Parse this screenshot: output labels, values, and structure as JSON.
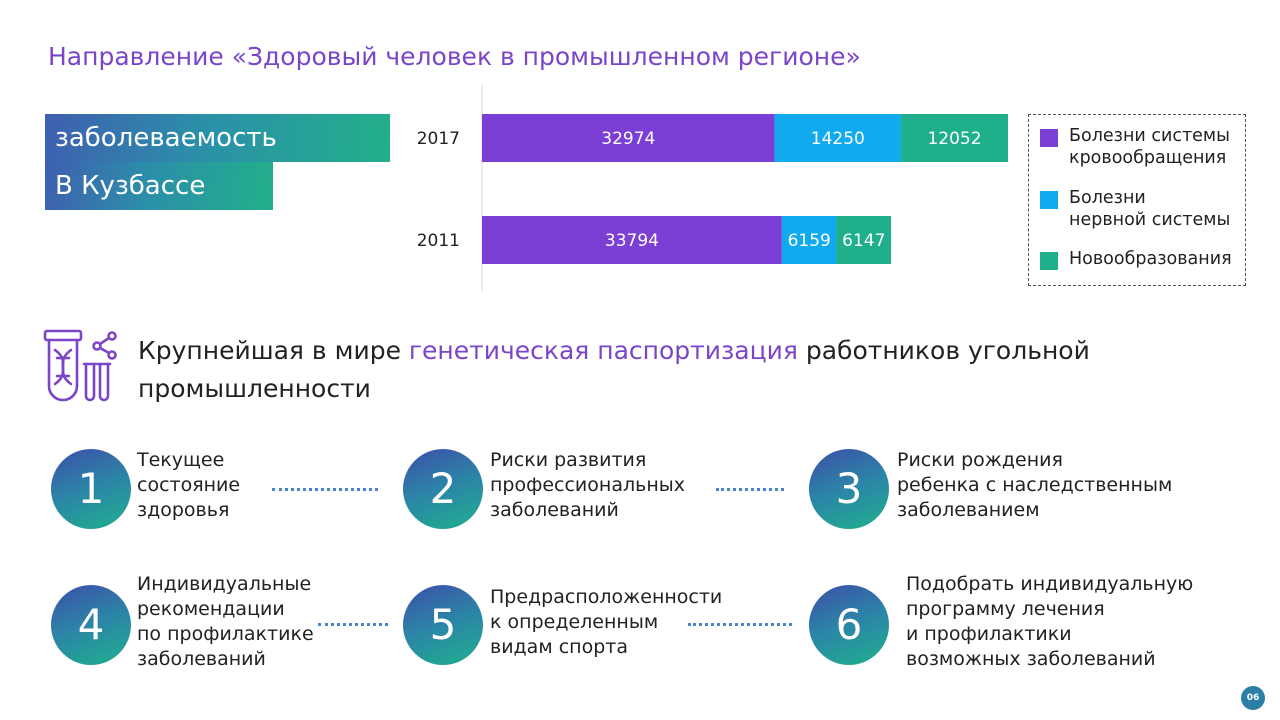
{
  "title": "Направление «Здоровый человек в промышленном регионе»",
  "tag": {
    "line1": "заболеваемость",
    "line2": "В Кузбассе"
  },
  "chart_data": {
    "type": "bar",
    "orientation": "horizontal",
    "stacked": true,
    "categories": [
      "2017",
      "2011"
    ],
    "series": [
      {
        "name": "Болезни системы кровообращения",
        "color": "#7b3fd6",
        "values": [
          32974,
          33794
        ]
      },
      {
        "name": "Болезни нервной системы",
        "color": "#12aaef",
        "values": [
          14250,
          6159
        ]
      },
      {
        "name": "Новообразования",
        "color": "#1fb08b",
        "values": [
          12052,
          6147
        ]
      }
    ],
    "legend_position": "right",
    "grid": false
  },
  "legend": {
    "items": [
      {
        "label": "Болезни системы\nкровообращения",
        "color": "#7b3fd6"
      },
      {
        "label": "Болезни\nнервной системы",
        "color": "#12aaef"
      },
      {
        "label": "Новообразования",
        "color": "#1fb08b"
      }
    ]
  },
  "headline": {
    "part1": "Крупнейшая в мире ",
    "accent": "генетическая паспортизация",
    "part2": " работников угольной промышленности"
  },
  "steps": [
    {
      "number": "1",
      "text": "Текущее\nсостояние\nздоровья"
    },
    {
      "number": "2",
      "text": "Риски развития\nпрофессиональных\nзаболеваний"
    },
    {
      "number": "3",
      "text": "Риски рождения\nребенка с наследственным\nзаболеванием"
    },
    {
      "number": "4",
      "text": "Индивидуальные\nрекомендации\nпо профилактике\nзаболеваний"
    },
    {
      "number": "5",
      "text": "Предрасположенности\nк определенным\nвидам спорта"
    },
    {
      "number": "6",
      "text": "Подобрать индивидуальную\nпрограмму лечения\nи профилактики\nвозможных заболеваний"
    }
  ],
  "page_number": "06"
}
